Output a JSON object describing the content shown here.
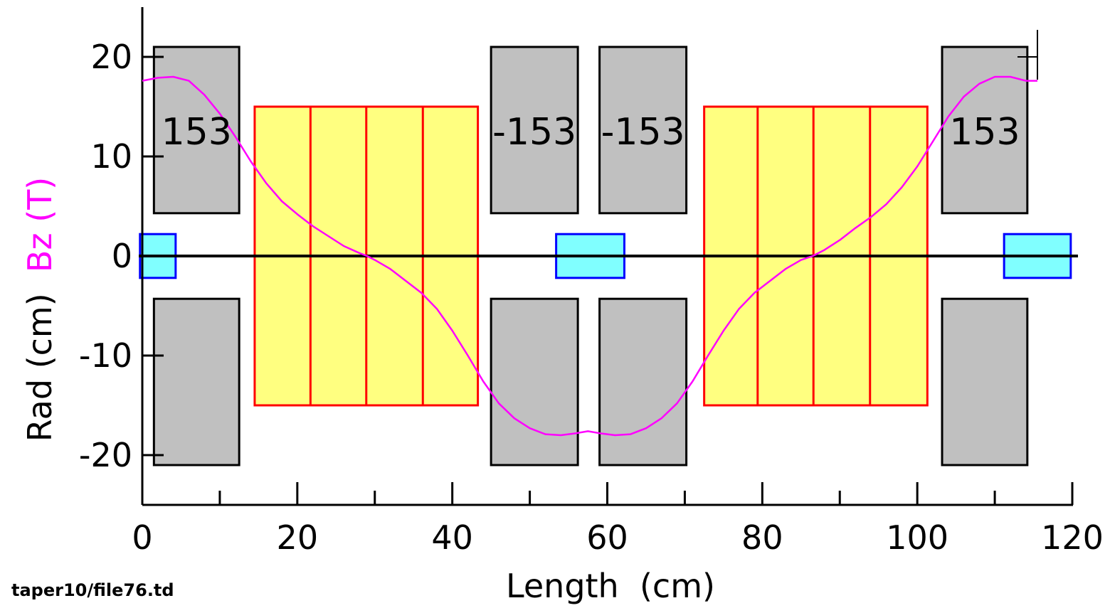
{
  "footer": {
    "filename": "taper10/file76.td"
  },
  "ylabel": {
    "rad_part": "Rad  (cm)",
    "bz_part": "Bz  (T)"
  },
  "xlabel": "Length  (cm)",
  "colors": {
    "coil_fill": "#c0c0c0",
    "coil_stroke": "#000000",
    "absorber_fill": "#ffff80",
    "absorber_stroke": "#ff0000",
    "window_fill": "#80ffff",
    "window_stroke": "#0000ff",
    "field_line": "#ff00ff",
    "axis": "#000000",
    "bz_label": "#ff00ff"
  },
  "chart_data": {
    "type": "diagram",
    "xlim": [
      0,
      120
    ],
    "ylim": [
      -25,
      25
    ],
    "x_ticks": [
      0,
      20,
      40,
      60,
      80,
      100,
      120
    ],
    "y_ticks": [
      20,
      10,
      0,
      -10,
      -20
    ],
    "coils": [
      {
        "x0": 1.5,
        "x1": 12.5,
        "r0": 4.3,
        "r1": 21,
        "current_label": "153"
      },
      {
        "x0": 45.0,
        "x1": 56.2,
        "r0": 4.3,
        "r1": 21,
        "current_label": "-153"
      },
      {
        "x0": 59.0,
        "x1": 70.2,
        "r0": 4.3,
        "r1": 21,
        "current_label": "-153"
      },
      {
        "x0": 103.2,
        "x1": 114.2,
        "r0": 4.3,
        "r1": 21,
        "current_label": "153"
      }
    ],
    "absorbers": [
      {
        "x0": 14.5,
        "x1": 43.3,
        "r": 15,
        "dividers": [
          21.7,
          28.9,
          36.2
        ]
      },
      {
        "x0": 72.5,
        "x1": 101.3,
        "r": 15,
        "dividers": [
          79.4,
          86.6,
          93.9
        ]
      }
    ],
    "windows": [
      {
        "x0": -0.3,
        "x1": 4.3,
        "r": 2.2
      },
      {
        "x0": 53.4,
        "x1": 62.2,
        "r": 2.2
      },
      {
        "x0": 111.2,
        "x1": 119.8,
        "r": 2.2
      }
    ],
    "bz_profile": [
      [
        0,
        17.6
      ],
      [
        2,
        17.9
      ],
      [
        4,
        18.0
      ],
      [
        6,
        17.6
      ],
      [
        8,
        16.2
      ],
      [
        10,
        14.3
      ],
      [
        12,
        12.0
      ],
      [
        14,
        9.5
      ],
      [
        16,
        7.3
      ],
      [
        18,
        5.5
      ],
      [
        20,
        4.2
      ],
      [
        22,
        3.0
      ],
      [
        24,
        2.0
      ],
      [
        26,
        1.0
      ],
      [
        28,
        0.3
      ],
      [
        29,
        0.0
      ],
      [
        30,
        -0.4
      ],
      [
        32,
        -1.3
      ],
      [
        34,
        -2.5
      ],
      [
        36,
        -3.7
      ],
      [
        38,
        -5.3
      ],
      [
        40,
        -7.5
      ],
      [
        42,
        -10.0
      ],
      [
        44,
        -12.6
      ],
      [
        46,
        -14.8
      ],
      [
        48,
        -16.3
      ],
      [
        50,
        -17.3
      ],
      [
        52,
        -17.9
      ],
      [
        54,
        -18.0
      ],
      [
        56,
        -17.8
      ],
      [
        57.5,
        -17.6
      ],
      [
        59,
        -17.8
      ],
      [
        61,
        -18.0
      ],
      [
        63,
        -17.9
      ],
      [
        65,
        -17.3
      ],
      [
        67,
        -16.3
      ],
      [
        69,
        -14.8
      ],
      [
        71,
        -12.6
      ],
      [
        73,
        -10.0
      ],
      [
        75,
        -7.5
      ],
      [
        77,
        -5.3
      ],
      [
        79,
        -3.7
      ],
      [
        81,
        -2.5
      ],
      [
        83,
        -1.3
      ],
      [
        85,
        -0.4
      ],
      [
        86.5,
        0.0
      ],
      [
        88,
        0.6
      ],
      [
        90,
        1.6
      ],
      [
        92,
        2.8
      ],
      [
        94,
        3.9
      ],
      [
        96,
        5.2
      ],
      [
        98,
        6.9
      ],
      [
        100,
        9.0
      ],
      [
        102,
        11.5
      ],
      [
        104,
        14.0
      ],
      [
        106,
        16.0
      ],
      [
        108,
        17.3
      ],
      [
        110,
        18.0
      ],
      [
        112,
        18.0
      ],
      [
        114,
        17.6
      ],
      [
        115.5,
        17.6
      ]
    ]
  }
}
